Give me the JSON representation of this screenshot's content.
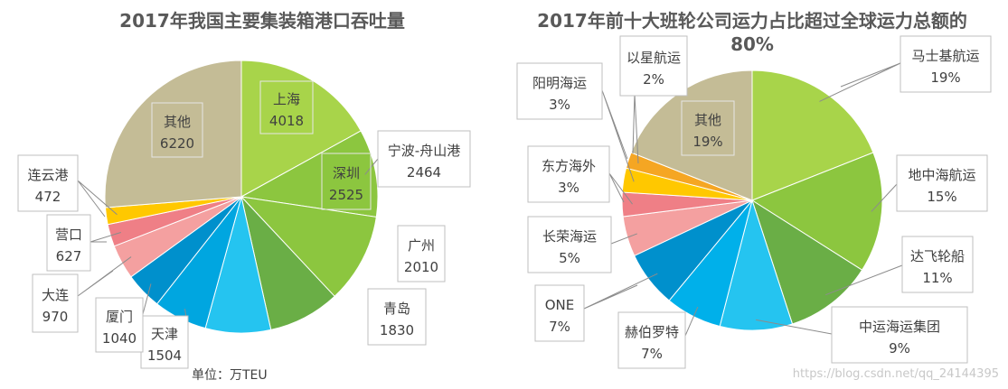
{
  "chart_data": [
    {
      "type": "pie",
      "title": "2017年我国主要集装箱港口吞吐量",
      "unit_note": "单位：万TEU",
      "slices": [
        {
          "label": "上海",
          "value": 4018,
          "color": "#a8d44a"
        },
        {
          "label": "宁波-舟山港",
          "value": 2464,
          "color": "#8cc63f"
        },
        {
          "label": "深圳",
          "value": 2525,
          "color": "#8cc63f"
        },
        {
          "label": "广州",
          "value": 2010,
          "color": "#6aae46"
        },
        {
          "label": "青岛",
          "value": 1830,
          "color": "#25c4f0"
        },
        {
          "label": "天津",
          "value": 1504,
          "color": "#00a6e0"
        },
        {
          "label": "厦门",
          "value": 1040,
          "color": "#0090cc"
        },
        {
          "label": "大连",
          "value": 970,
          "color": "#f4a0a0"
        },
        {
          "label": "营口",
          "value": 627,
          "color": "#ef7f86"
        },
        {
          "label": "连云港",
          "value": 472,
          "color": "#ffc800"
        },
        {
          "label": "其他",
          "value": 6220,
          "color": "#c4bc96"
        }
      ]
    },
    {
      "type": "pie",
      "title": "2017年前十大班轮公司运力占比超过全球运力总额的80%",
      "slices": [
        {
          "label": "马士基航运",
          "value": 19,
          "display": "19%",
          "color": "#a8d44a"
        },
        {
          "label": "地中海航运",
          "value": 15,
          "display": "15%",
          "color": "#8cc63f"
        },
        {
          "label": "达飞轮船",
          "value": 11,
          "display": "11%",
          "color": "#6aae46"
        },
        {
          "label": "中运海运集团",
          "value": 9,
          "display": "9%",
          "color": "#25c4f0"
        },
        {
          "label": "赫伯罗特",
          "value": 7,
          "display": "7%",
          "color": "#00b0ea"
        },
        {
          "label": "ONE",
          "value": 7,
          "display": "7%",
          "color": "#0090cc"
        },
        {
          "label": "长荣海运",
          "value": 5,
          "display": "5%",
          "color": "#f4a0a0"
        },
        {
          "label": "东方海外",
          "value": 3,
          "display": "3%",
          "color": "#ef7f86"
        },
        {
          "label": "阳明海运",
          "value": 3,
          "display": "3%",
          "color": "#ffc800"
        },
        {
          "label": "以星航运",
          "value": 2,
          "display": "2%",
          "color": "#f5a623"
        },
        {
          "label": "其他",
          "value": 19,
          "display": "19%",
          "color": "#c4bc96"
        }
      ]
    }
  ],
  "watermark": "https://blog.csdn.net/qq_24144395"
}
